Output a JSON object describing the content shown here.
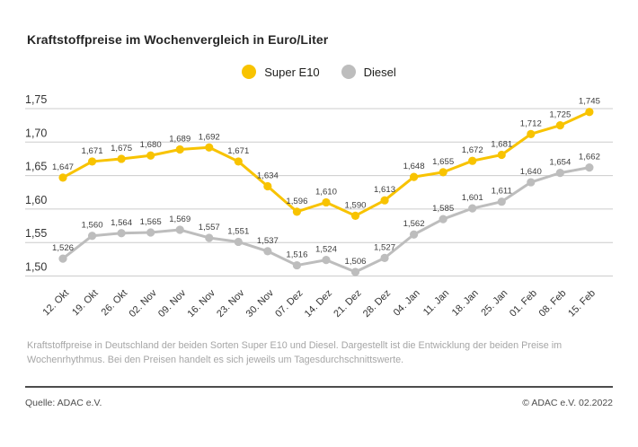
{
  "title": "Kraftstoffpreise im Wochenvergleich in Euro/Liter",
  "legend": {
    "items": [
      {
        "label": "Super E10",
        "color": "#F8C300"
      },
      {
        "label": "Diesel",
        "color": "#BDBDBD"
      }
    ]
  },
  "chart_data": {
    "type": "line",
    "title": "Kraftstoffpreise im Wochenvergleich in Euro/Liter",
    "categories": [
      "12. Okt",
      "19. Okt",
      "26. Okt",
      "02. Nov",
      "09. Nov",
      "16. Nov",
      "23. Nov",
      "30. Nov",
      "07. Dez",
      "14. Dez",
      "21. Dez",
      "28. Dez",
      "04. Jan",
      "11. Jan",
      "18. Jan",
      "25. Jan",
      "01. Feb",
      "08. Feb",
      "15. Feb"
    ],
    "series": [
      {
        "name": "Super E10",
        "color": "#F8C300",
        "values": [
          1.647,
          1.671,
          1.675,
          1.68,
          1.689,
          1.692,
          1.671,
          1.634,
          1.596,
          1.61,
          1.59,
          1.613,
          1.648,
          1.655,
          1.672,
          1.681,
          1.712,
          1.725,
          1.745
        ]
      },
      {
        "name": "Diesel",
        "color": "#BDBDBD",
        "values": [
          1.526,
          1.56,
          1.564,
          1.565,
          1.569,
          1.557,
          1.551,
          1.537,
          1.516,
          1.524,
          1.506,
          1.527,
          1.562,
          1.585,
          1.601,
          1.611,
          1.64,
          1.654,
          1.662
        ]
      }
    ],
    "ylim": [
      1.5,
      1.75
    ],
    "yticks": [
      1.75,
      1.7,
      1.65,
      1.6,
      1.55,
      1.5
    ],
    "ytick_labels": [
      "1,75",
      "1,70",
      "1,65",
      "1,60",
      "1,55",
      "1,50"
    ],
    "xlabel": "",
    "ylabel": "",
    "grid": true,
    "legend_position": "top-center",
    "value_labels": true,
    "decimal_separator": ","
  },
  "footnote": "Kraftstoffpreise in Deutschland der beiden Sorten Super E10 und Diesel. Dargestellt ist die Entwicklung der beiden Preise im Wochenrhythmus. Bei den Preisen handelt es sich jeweils um Tagesdurchschnittswerte.",
  "source": "Quelle: ADAC e.V.",
  "copyright": "© ADAC e.V. 02.2022",
  "colors": {
    "grid": "#cccccc",
    "axis_text": "#333333",
    "value_label": "#3d3d3d",
    "footnote_text": "#a6a6a6",
    "divider": "#4d4d4d",
    "source_text": "#4d4d4d",
    "title_text": "#262626"
  }
}
